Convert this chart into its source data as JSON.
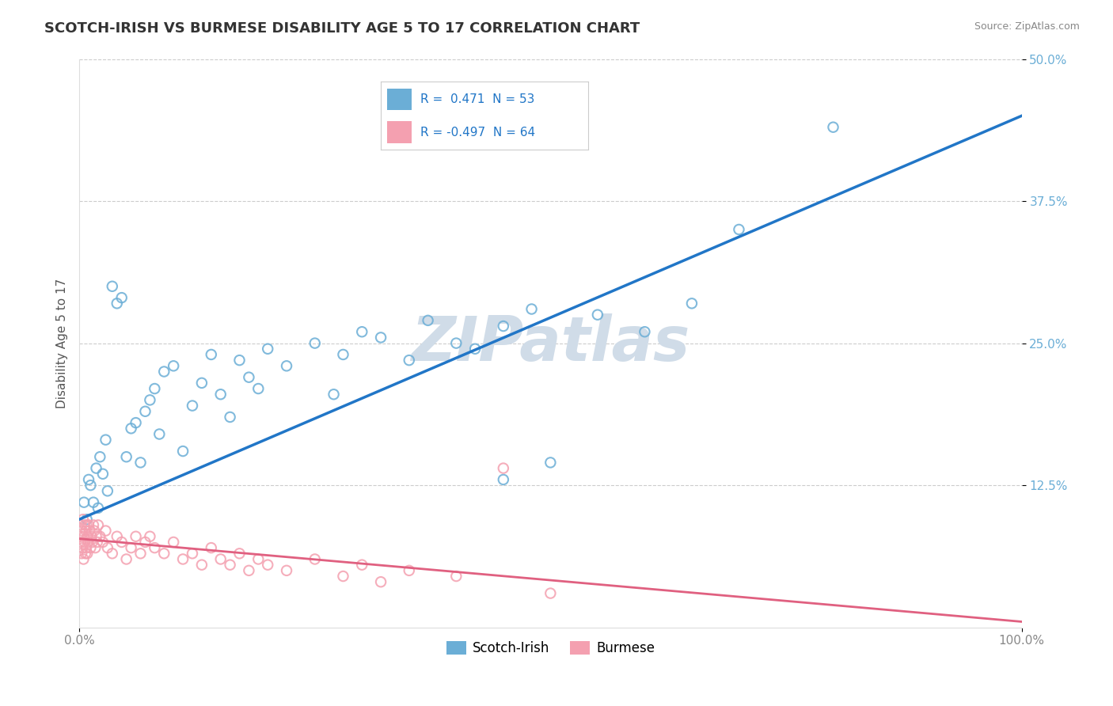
{
  "title": "SCOTCH-IRISH VS BURMESE DISABILITY AGE 5 TO 17 CORRELATION CHART",
  "source": "Source: ZipAtlas.com",
  "ylabel": "Disability Age 5 to 17",
  "xlim": [
    0,
    100
  ],
  "ylim": [
    0,
    50
  ],
  "xtick_labels": [
    "0.0%",
    "100.0%"
  ],
  "ytick_labels": [
    "12.5%",
    "25.0%",
    "37.5%",
    "50.0%"
  ],
  "yticks": [
    12.5,
    25.0,
    37.5,
    50.0
  ],
  "scotch_irish_R": 0.471,
  "scotch_irish_N": 53,
  "burmese_R": -0.497,
  "burmese_N": 64,
  "scotch_irish_color": "#6baed6",
  "burmese_color": "#f4a0b0",
  "scotch_irish_line_color": "#2176c7",
  "burmese_line_color": "#e06080",
  "background_color": "#ffffff",
  "grid_color": "#cccccc",
  "watermark_text": "ZIPatlas",
  "watermark_color": "#d0dce8",
  "title_color": "#333333",
  "title_fontsize": 13,
  "axis_label_fontsize": 11,
  "tick_fontsize": 11,
  "ytick_color": "#6baed6",
  "legend_color": "#2176c7",
  "si_trend_x0": 0,
  "si_trend_y0": 9.5,
  "si_trend_x1": 100,
  "si_trend_y1": 45.0,
  "bu_trend_x0": 0,
  "bu_trend_y0": 7.8,
  "bu_trend_x1": 100,
  "bu_trend_y1": 0.5,
  "scotch_irish_x": [
    0.5,
    0.8,
    1.0,
    1.2,
    1.5,
    1.8,
    2.0,
    2.2,
    2.5,
    2.8,
    3.0,
    3.5,
    4.0,
    4.5,
    5.0,
    5.5,
    6.0,
    6.5,
    7.0,
    7.5,
    8.0,
    8.5,
    9.0,
    10.0,
    11.0,
    12.0,
    13.0,
    14.0,
    15.0,
    16.0,
    17.0,
    18.0,
    19.0,
    20.0,
    22.0,
    25.0,
    28.0,
    30.0,
    32.0,
    35.0,
    37.0,
    40.0,
    42.0,
    45.0,
    48.0,
    50.0,
    55.0,
    60.0,
    65.0,
    70.0,
    80.0,
    27.0,
    45.0
  ],
  "scotch_irish_y": [
    11.0,
    9.5,
    13.0,
    12.5,
    11.0,
    14.0,
    10.5,
    15.0,
    13.5,
    16.5,
    12.0,
    30.0,
    28.5,
    29.0,
    15.0,
    17.5,
    18.0,
    14.5,
    19.0,
    20.0,
    21.0,
    17.0,
    22.5,
    23.0,
    15.5,
    19.5,
    21.5,
    24.0,
    20.5,
    18.5,
    23.5,
    22.0,
    21.0,
    24.5,
    23.0,
    25.0,
    24.0,
    26.0,
    25.5,
    23.5,
    27.0,
    25.0,
    24.5,
    26.5,
    28.0,
    14.5,
    27.5,
    26.0,
    28.5,
    35.0,
    44.0,
    20.5,
    13.0
  ],
  "burmese_x": [
    0.1,
    0.15,
    0.2,
    0.25,
    0.3,
    0.35,
    0.4,
    0.45,
    0.5,
    0.55,
    0.6,
    0.65,
    0.7,
    0.75,
    0.8,
    0.85,
    0.9,
    0.95,
    1.0,
    1.1,
    1.2,
    1.3,
    1.4,
    1.5,
    1.6,
    1.7,
    1.8,
    1.9,
    2.0,
    2.2,
    2.5,
    2.8,
    3.0,
    3.5,
    4.0,
    4.5,
    5.0,
    5.5,
    6.0,
    6.5,
    7.0,
    7.5,
    8.0,
    9.0,
    10.0,
    11.0,
    12.0,
    13.0,
    14.0,
    15.0,
    16.0,
    17.0,
    18.0,
    19.0,
    20.0,
    22.0,
    25.0,
    28.0,
    30.0,
    32.0,
    35.0,
    40.0,
    45.0,
    50.0
  ],
  "burmese_y": [
    8.0,
    7.5,
    9.0,
    6.5,
    8.5,
    7.0,
    9.5,
    6.0,
    8.0,
    7.5,
    9.0,
    6.5,
    8.5,
    7.0,
    9.0,
    6.5,
    8.0,
    7.5,
    9.0,
    8.5,
    7.0,
    8.0,
    7.5,
    9.0,
    8.5,
    7.0,
    8.0,
    7.5,
    9.0,
    8.0,
    7.5,
    8.5,
    7.0,
    6.5,
    8.0,
    7.5,
    6.0,
    7.0,
    8.0,
    6.5,
    7.5,
    8.0,
    7.0,
    6.5,
    7.5,
    6.0,
    6.5,
    5.5,
    7.0,
    6.0,
    5.5,
    6.5,
    5.0,
    6.0,
    5.5,
    5.0,
    6.0,
    4.5,
    5.5,
    4.0,
    5.0,
    4.5,
    14.0,
    3.0
  ]
}
